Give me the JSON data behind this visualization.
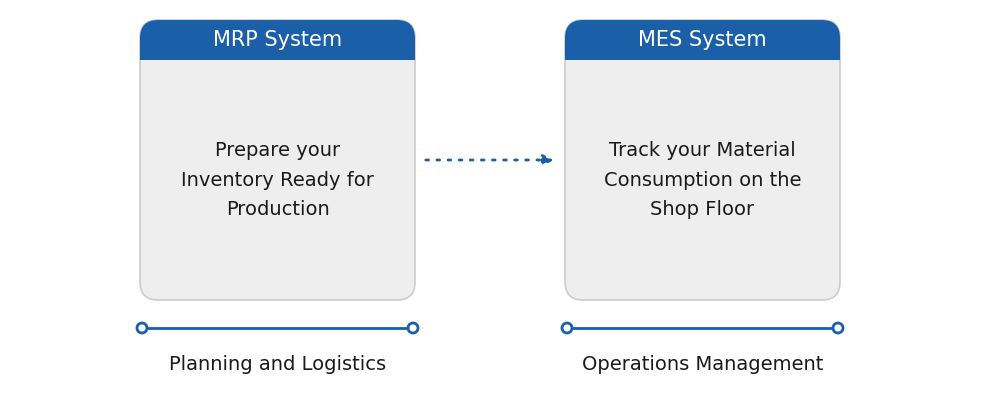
{
  "background_color": "#ffffff",
  "box_fill_color": "#eeeeee",
  "box_edge_color": "#cccccc",
  "header_fill_color": "#1a5fa8",
  "header_text_color": "#ffffff",
  "body_text_color": "#1a1a1a",
  "arrow_color": "#1a5fa8",
  "line_color": "#1a5fa8",
  "header1_label": "MRP System",
  "header2_label": "MES System",
  "body1_text": "Prepare your\nInventory Ready for\nProduction",
  "body2_text": "Track your Material\nConsumption on the\nShop Floor",
  "footer1_text": "Planning and Logistics",
  "footer2_text": "Operations Management",
  "header_fontsize": 15,
  "body_fontsize": 14,
  "footer_fontsize": 14
}
